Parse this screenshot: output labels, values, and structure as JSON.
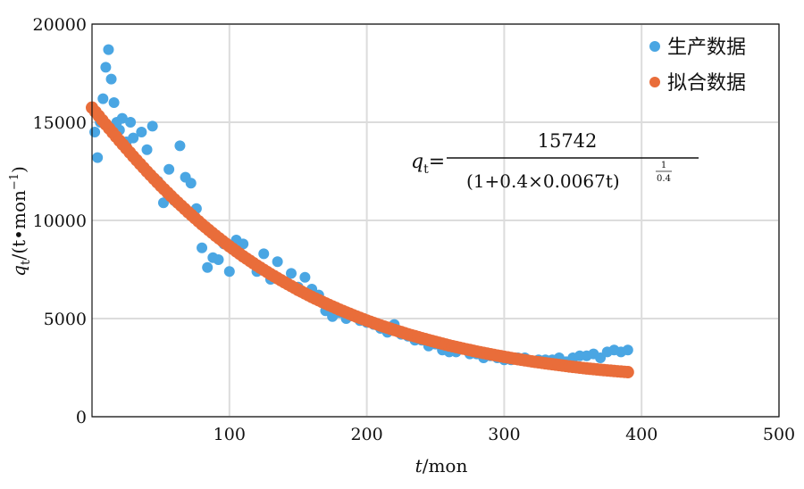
{
  "chart_data": {
    "type": "scatter",
    "xlabel": {
      "var": "t",
      "unit": "/mon"
    },
    "ylabel": {
      "var": "q",
      "sub": "t",
      "unit_open": "/(t•mon",
      "sup": "−1",
      "unit_close": ")"
    },
    "xlim": [
      0,
      500
    ],
    "ylim": [
      0,
      20000
    ],
    "x_ticks": [
      100,
      200,
      300,
      400,
      500
    ],
    "x_tick_labels": [
      "100",
      "200",
      "300",
      "400",
      "500"
    ],
    "y_ticks": [
      0,
      5000,
      10000,
      15000,
      20000
    ],
    "y_tick_labels": [
      "0",
      "5000",
      "10000",
      "15000",
      "20000"
    ],
    "grid": true,
    "legend_position": "top-right",
    "formula": {
      "lhs": "q",
      "lhs_sub": "t",
      "eq": "=",
      "numerator": "15742",
      "denominator": "(1+0.4×0.0067t)",
      "exp_num": "1",
      "exp_den": "0.4"
    },
    "series": [
      {
        "name": "生产数据",
        "color": "#4aa6e3",
        "marker": "dot",
        "x": [
          2,
          4,
          6,
          8,
          10,
          12,
          14,
          16,
          18,
          20,
          22,
          25,
          28,
          30,
          33,
          36,
          40,
          44,
          48,
          52,
          56,
          60,
          64,
          68,
          72,
          76,
          80,
          84,
          88,
          92,
          96,
          100,
          105,
          110,
          115,
          120,
          125,
          130,
          135,
          140,
          145,
          150,
          155,
          160,
          165,
          170,
          175,
          180,
          185,
          190,
          195,
          200,
          205,
          210,
          215,
          220,
          225,
          230,
          235,
          240,
          245,
          250,
          255,
          260,
          265,
          270,
          275,
          280,
          285,
          290,
          295,
          300,
          305,
          310,
          315,
          320,
          325,
          330,
          335,
          340,
          345,
          350,
          355,
          360,
          365,
          370,
          375,
          380,
          385,
          390
        ],
        "y": [
          14500,
          13200,
          15000,
          16200,
          17800,
          18700,
          17200,
          16000,
          15000,
          14600,
          15200,
          14000,
          15000,
          14200,
          13000,
          14500,
          13600,
          14800,
          12000,
          10900,
          12600,
          11000,
          13800,
          12200,
          11900,
          10600,
          8600,
          7600,
          8100,
          8000,
          8800,
          7400,
          9000,
          8800,
          7900,
          7400,
          8300,
          7000,
          7900,
          6900,
          7300,
          6600,
          7100,
          6500,
          6200,
          5400,
          5100,
          5300,
          5000,
          5200,
          4900,
          4800,
          4700,
          4500,
          4300,
          4700,
          4200,
          4100,
          3900,
          3900,
          3600,
          3700,
          3400,
          3300,
          3300,
          3500,
          3200,
          3200,
          3000,
          3100,
          3000,
          2900,
          2900,
          3000,
          3000,
          2800,
          2900,
          2900,
          2900,
          3000,
          2800,
          3000,
          3100,
          3100,
          3200,
          3000,
          3300,
          3400,
          3300,
          3400
        ]
      },
      {
        "name": "拟合数据",
        "color": "#e96d3a",
        "marker": "dot",
        "x": [
          0,
          10,
          20,
          30,
          40,
          50,
          60,
          70,
          80,
          90,
          100,
          110,
          120,
          130,
          140,
          150,
          160,
          170,
          180,
          190,
          200,
          210,
          220,
          230,
          240,
          250,
          260,
          270,
          280,
          290,
          300,
          310,
          320,
          330,
          340,
          350,
          360,
          370,
          380,
          390
        ],
        "y": [
          15742,
          14890,
          14060,
          13260,
          12490,
          11760,
          11070,
          10420,
          9800,
          9220,
          8680,
          8170,
          7700,
          7260,
          6850,
          6460,
          6100,
          5770,
          5460,
          5170,
          4900,
          4650,
          4420,
          4200,
          4000,
          3810,
          3630,
          3470,
          3320,
          3180,
          3050,
          2930,
          2820,
          2720,
          2630,
          2540,
          2460,
          2390,
          2330,
          2270
        ]
      }
    ]
  }
}
